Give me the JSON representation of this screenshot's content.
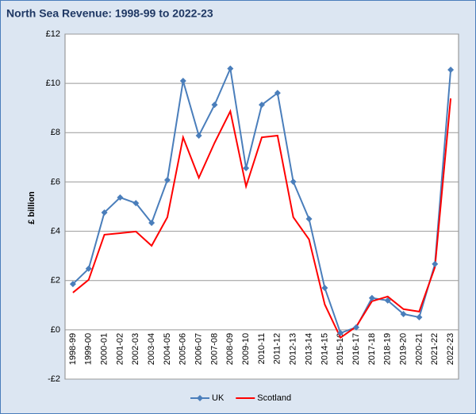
{
  "chart_data": {
    "type": "line",
    "title": "North Sea Revenue: 1998-99 to 2022-23",
    "y_label": "£ billion",
    "categories": [
      "1998-99",
      "1999-00",
      "2000-01",
      "2001-02",
      "2002-03",
      "2003-04",
      "2004-05",
      "2005-06",
      "2006-07",
      "2007-08",
      "2008-09",
      "2009-10",
      "2010-11",
      "2011-12",
      "2012-13",
      "2013-14",
      "2014-15",
      "2015-16",
      "2016-17",
      "2017-18",
      "2018-19",
      "2019-20",
      "2020-21",
      "2021-22",
      "2022-23"
    ],
    "series": [
      {
        "name": "UK",
        "color": "#4a7ebb",
        "marker": "diamond",
        "values": [
          1.86,
          2.48,
          4.76,
          5.37,
          5.14,
          4.34,
          6.08,
          10.1,
          7.88,
          9.13,
          10.6,
          6.56,
          9.13,
          9.61,
          6.01,
          4.5,
          1.7,
          -0.13,
          0.1,
          1.29,
          1.19,
          0.64,
          0.51,
          2.67,
          10.55
        ]
      },
      {
        "name": "Scotland",
        "color": "#ff0000",
        "values": [
          1.51,
          2.03,
          3.86,
          3.92,
          3.99,
          3.41,
          4.57,
          7.81,
          6.17,
          7.59,
          8.87,
          5.82,
          7.81,
          7.88,
          4.57,
          3.67,
          1.03,
          -0.32,
          0.13,
          1.16,
          1.35,
          0.84,
          0.74,
          2.54,
          9.39
        ]
      }
    ],
    "ylim": [
      -2,
      12
    ],
    "yticks": [
      {
        "value": -2,
        "label": "-£2"
      },
      {
        "value": 0,
        "label": "£0"
      },
      {
        "value": 2,
        "label": "£2"
      },
      {
        "value": 4,
        "label": "£4"
      },
      {
        "value": 6,
        "label": "£6"
      },
      {
        "value": 8,
        "label": "£8"
      },
      {
        "value": 10,
        "label": "£10"
      },
      {
        "value": 12,
        "label": "£12"
      }
    ],
    "grid": true,
    "legend": "bottom"
  }
}
